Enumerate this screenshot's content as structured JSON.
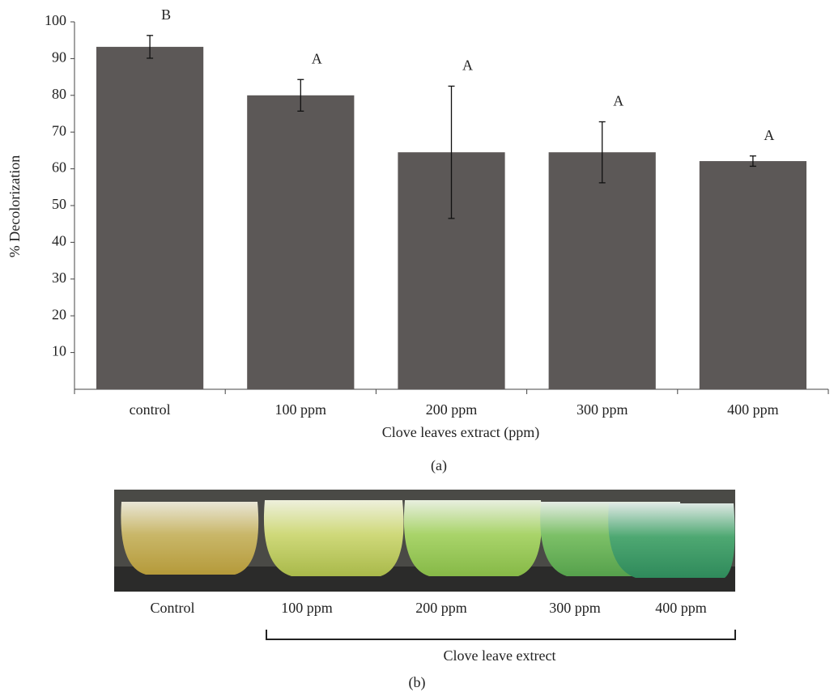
{
  "chart_data": {
    "type": "bar",
    "y_label": "% Decolorization",
    "x_label": "Clove leaves extract  (ppm)",
    "categories": [
      "control",
      "100 ppm",
      "200 ppm",
      "300 ppm",
      "400 ppm"
    ],
    "values": [
      93.2,
      80.0,
      64.5,
      64.5,
      62.1
    ],
    "errors": [
      3.1,
      4.3,
      18.0,
      8.3,
      1.4
    ],
    "annotations": [
      "B",
      "A",
      "A",
      "A",
      "A"
    ],
    "color": "#5c5857",
    "ylim": [
      0,
      100
    ],
    "yticks": [
      10,
      20,
      30,
      40,
      50,
      60,
      70,
      80,
      90,
      100
    ],
    "grid": false
  },
  "figure": {
    "panel_a_label": "(a)",
    "photo_labels": [
      "Control",
      "100 ppm",
      "200 ppm",
      "300 ppm",
      "400 ppm"
    ],
    "bracket_label": "Clove leave extrect",
    "panel_b_label": "(b)"
  }
}
